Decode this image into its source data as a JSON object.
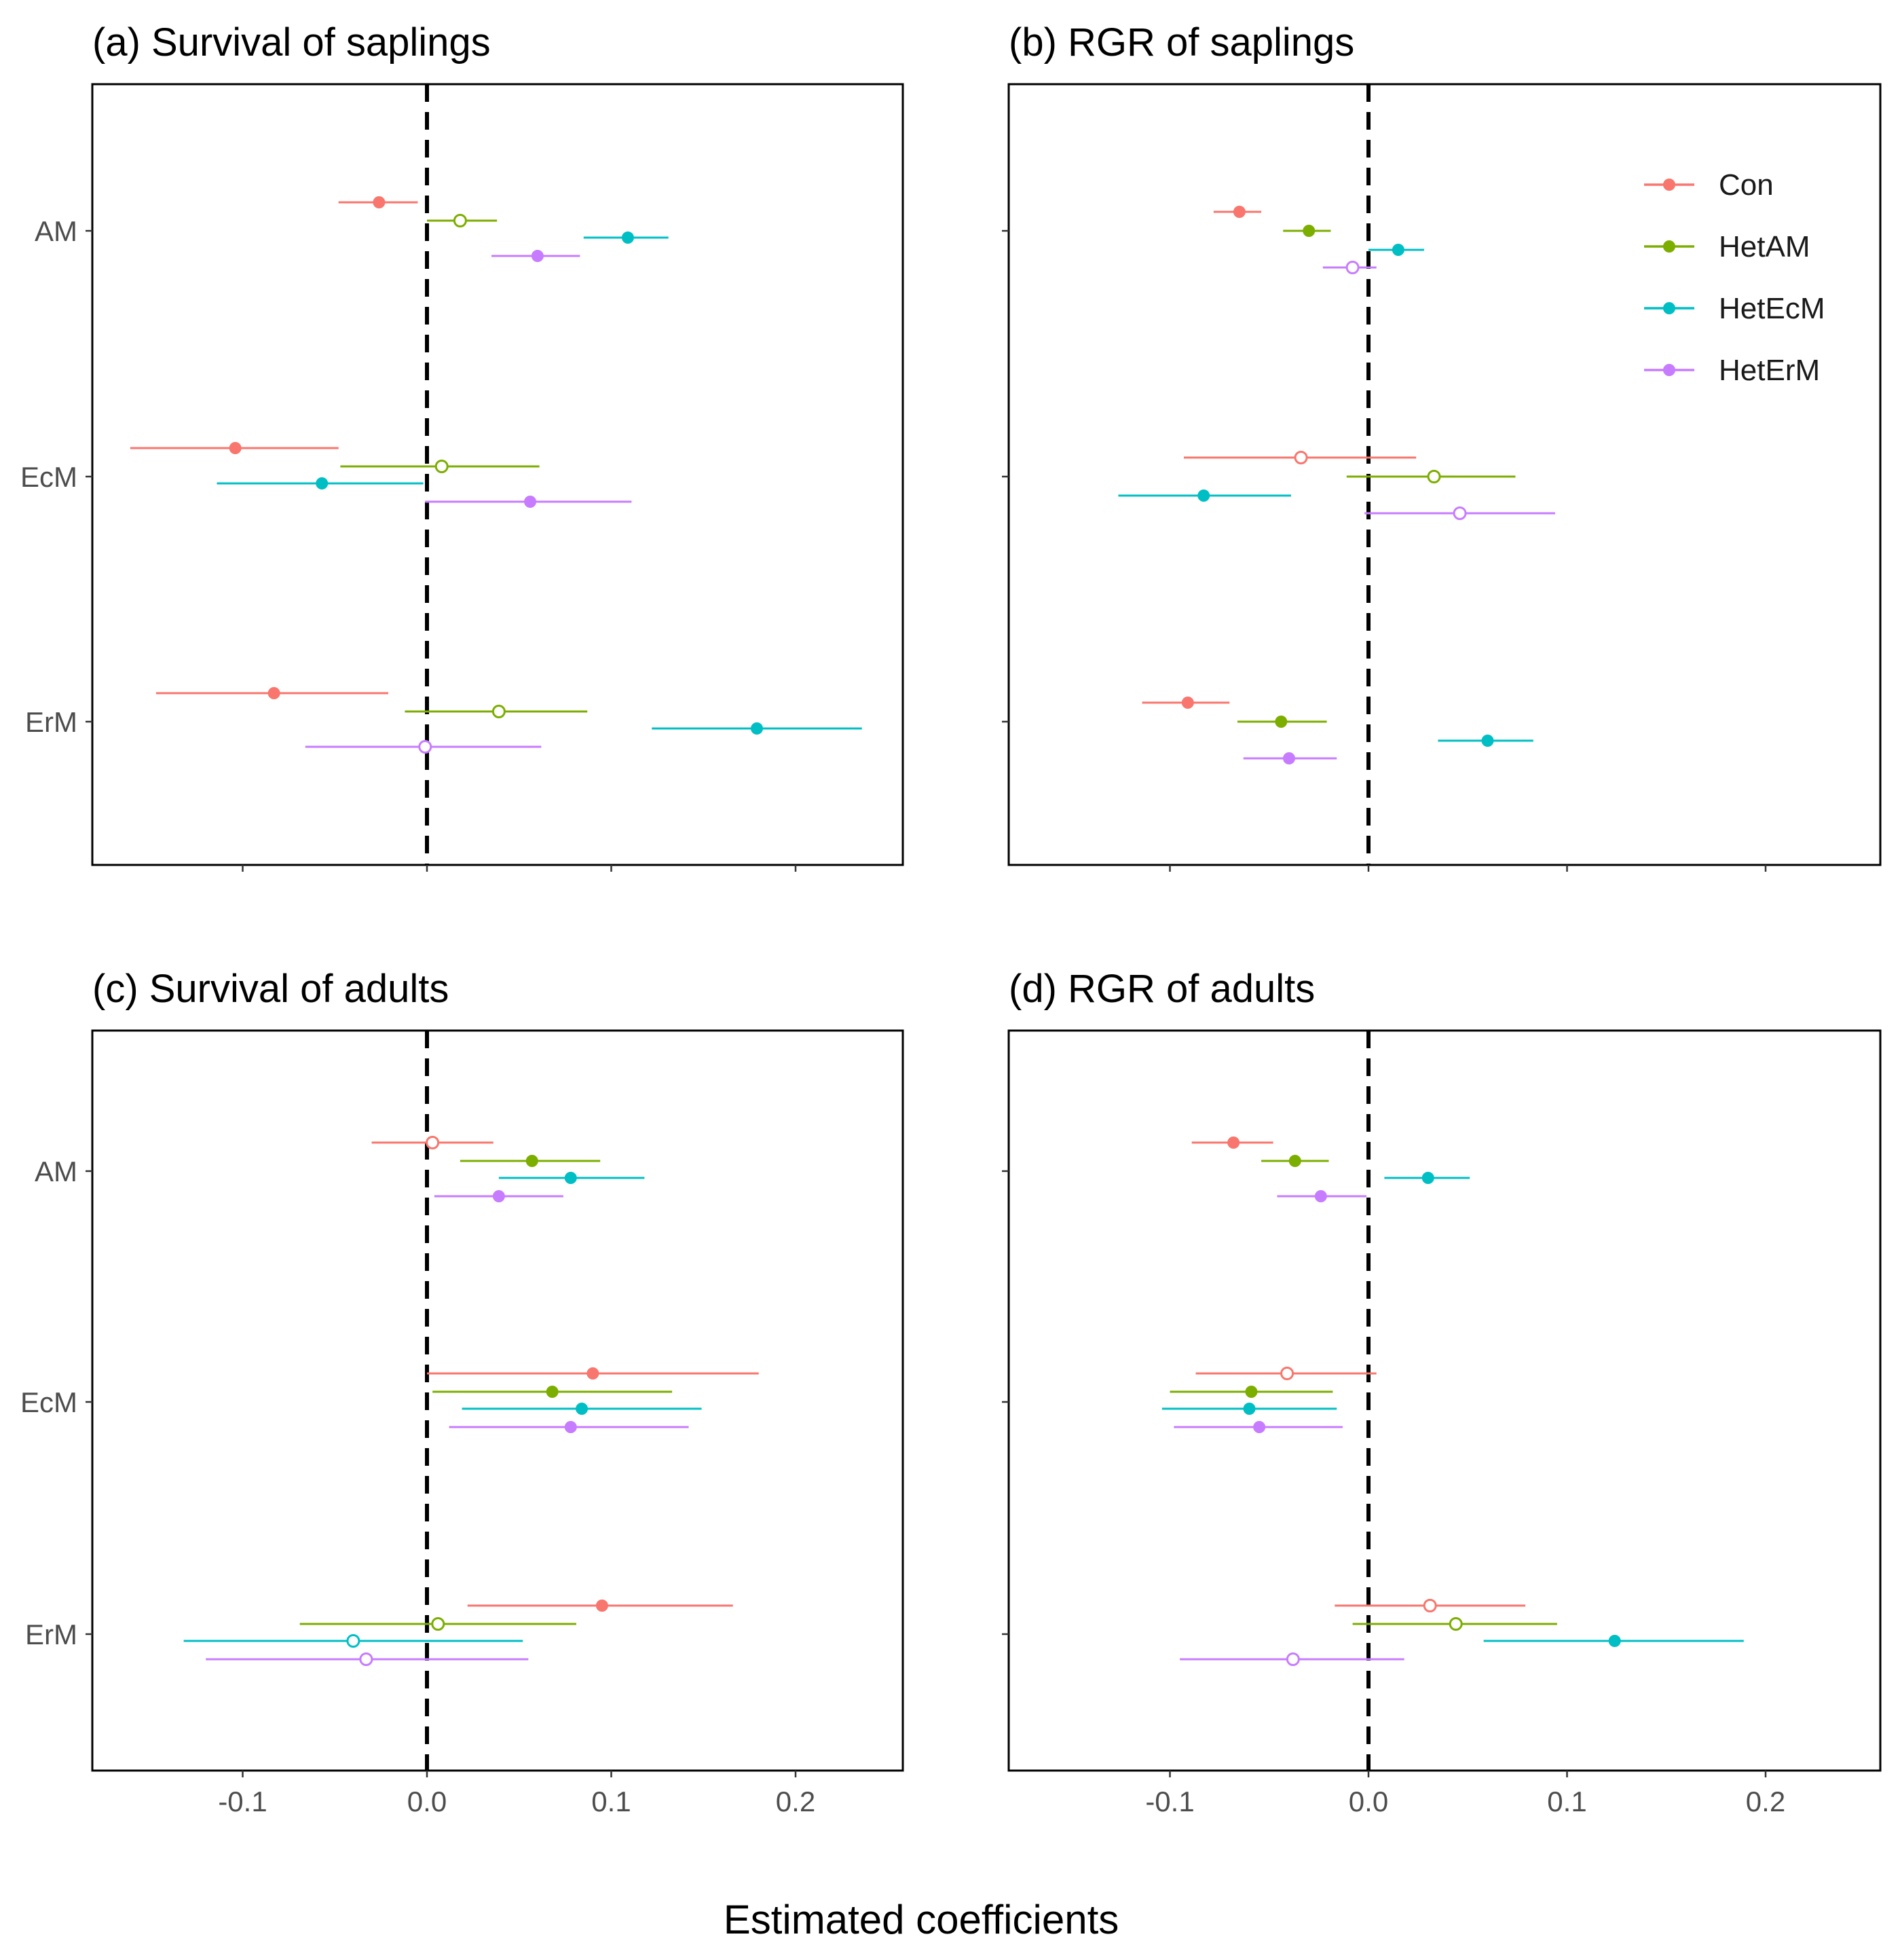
{
  "figure": {
    "x_axis_title": "Estimated coefficients",
    "group_categories": [
      "AM",
      "EcM",
      "ErM"
    ],
    "legend": {
      "placement": "top-right of panel (b)",
      "entries": [
        {
          "name": "Con",
          "color": "#F8766D"
        },
        {
          "name": "HetAM",
          "color": "#7CAE00"
        },
        {
          "name": "HetEcM",
          "color": "#00BFC4"
        },
        {
          "name": "HetErM",
          "color": "#C77CFF"
        }
      ]
    },
    "x_ticks": [
      -0.1,
      0.0,
      0.1,
      0.2
    ],
    "x_tick_labels": [
      "-0.1",
      "0.0",
      "0.1",
      "0.2"
    ],
    "reference_line": {
      "x": 0,
      "style": "dashed",
      "color": "#000000"
    },
    "marker_note": "filled = significant, open = not significant"
  },
  "chart_data": [
    {
      "type": "forest",
      "title": "(a) Survival of saplings",
      "xlabel": "Estimated coefficients",
      "ylabel": "",
      "xlim": [
        -0.181,
        0.258
      ],
      "categories": [
        "AM",
        "EcM",
        "ErM"
      ],
      "series": [
        {
          "name": "Con",
          "color": "#F8766D",
          "points": [
            {
              "group": "AM",
              "est": -0.026,
              "lo": -0.048,
              "hi": -0.005,
              "filled": true
            },
            {
              "group": "EcM",
              "est": -0.104,
              "lo": -0.161,
              "hi": -0.048,
              "filled": true
            },
            {
              "group": "ErM",
              "est": -0.083,
              "lo": -0.147,
              "hi": -0.021,
              "filled": true
            }
          ]
        },
        {
          "name": "HetAM",
          "color": "#7CAE00",
          "points": [
            {
              "group": "AM",
              "est": 0.018,
              "lo": 0.0,
              "hi": 0.038,
              "filled": false
            },
            {
              "group": "EcM",
              "est": 0.008,
              "lo": -0.047,
              "hi": 0.061,
              "filled": false
            },
            {
              "group": "ErM",
              "est": 0.039,
              "lo": -0.012,
              "hi": 0.087,
              "filled": false
            }
          ]
        },
        {
          "name": "HetEcM",
          "color": "#00BFC4",
          "points": [
            {
              "group": "AM",
              "est": 0.109,
              "lo": 0.085,
              "hi": 0.131,
              "filled": true
            },
            {
              "group": "EcM",
              "est": -0.057,
              "lo": -0.114,
              "hi": -0.002,
              "filled": true
            },
            {
              "group": "ErM",
              "est": 0.179,
              "lo": 0.122,
              "hi": 0.236,
              "filled": true
            }
          ]
        },
        {
          "name": "HetErM",
          "color": "#C77CFF",
          "points": [
            {
              "group": "AM",
              "est": 0.06,
              "lo": 0.035,
              "hi": 0.083,
              "filled": true
            },
            {
              "group": "EcM",
              "est": 0.056,
              "lo": -0.001,
              "hi": 0.111,
              "filled": true
            },
            {
              "group": "ErM",
              "est": -0.001,
              "lo": -0.066,
              "hi": 0.062,
              "filled": false
            }
          ]
        }
      ]
    },
    {
      "type": "forest",
      "title": "(b) RGR of saplings",
      "xlabel": "Estimated coefficients",
      "ylabel": "",
      "xlim": [
        -0.181,
        0.258
      ],
      "categories": [
        "AM",
        "EcM",
        "ErM"
      ],
      "series": [
        {
          "name": "Con",
          "color": "#F8766D",
          "points": [
            {
              "group": "AM",
              "est": -0.065,
              "lo": -0.078,
              "hi": -0.054,
              "filled": true
            },
            {
              "group": "EcM",
              "est": -0.034,
              "lo": -0.093,
              "hi": 0.024,
              "filled": false
            },
            {
              "group": "ErM",
              "est": -0.091,
              "lo": -0.114,
              "hi": -0.07,
              "filled": true
            }
          ]
        },
        {
          "name": "HetAM",
          "color": "#7CAE00",
          "points": [
            {
              "group": "AM",
              "est": -0.03,
              "lo": -0.043,
              "hi": -0.019,
              "filled": true
            },
            {
              "group": "EcM",
              "est": 0.033,
              "lo": -0.011,
              "hi": 0.074,
              "filled": false
            },
            {
              "group": "ErM",
              "est": -0.044,
              "lo": -0.066,
              "hi": -0.021,
              "filled": true
            }
          ]
        },
        {
          "name": "HetEcM",
          "color": "#00BFC4",
          "points": [
            {
              "group": "AM",
              "est": 0.015,
              "lo": 0.0,
              "hi": 0.028,
              "filled": true
            },
            {
              "group": "EcM",
              "est": -0.083,
              "lo": -0.126,
              "hi": -0.039,
              "filled": true
            },
            {
              "group": "ErM",
              "est": 0.06,
              "lo": 0.035,
              "hi": 0.083,
              "filled": true
            }
          ]
        },
        {
          "name": "HetErM",
          "color": "#C77CFF",
          "points": [
            {
              "group": "AM",
              "est": -0.008,
              "lo": -0.023,
              "hi": 0.004,
              "filled": false
            },
            {
              "group": "EcM",
              "est": 0.046,
              "lo": -0.002,
              "hi": 0.094,
              "filled": false
            },
            {
              "group": "ErM",
              "est": -0.04,
              "lo": -0.063,
              "hi": -0.016,
              "filled": true
            }
          ]
        }
      ]
    },
    {
      "type": "forest",
      "title": "(c) Survival of adults",
      "xlabel": "Estimated coefficients",
      "ylabel": "",
      "xlim": [
        -0.181,
        0.258
      ],
      "categories": [
        "AM",
        "EcM",
        "ErM"
      ],
      "series": [
        {
          "name": "Con",
          "color": "#F8766D",
          "points": [
            {
              "group": "AM",
              "est": 0.003,
              "lo": -0.03,
              "hi": 0.036,
              "filled": false
            },
            {
              "group": "EcM",
              "est": 0.09,
              "lo": 0.0,
              "hi": 0.18,
              "filled": true
            },
            {
              "group": "ErM",
              "est": 0.095,
              "lo": 0.022,
              "hi": 0.166,
              "filled": true
            }
          ]
        },
        {
          "name": "HetAM",
          "color": "#7CAE00",
          "points": [
            {
              "group": "AM",
              "est": 0.057,
              "lo": 0.018,
              "hi": 0.094,
              "filled": true
            },
            {
              "group": "EcM",
              "est": 0.068,
              "lo": 0.003,
              "hi": 0.133,
              "filled": true
            },
            {
              "group": "ErM",
              "est": 0.006,
              "lo": -0.069,
              "hi": 0.081,
              "filled": false
            }
          ]
        },
        {
          "name": "HetEcM",
          "color": "#00BFC4",
          "points": [
            {
              "group": "AM",
              "est": 0.078,
              "lo": 0.039,
              "hi": 0.118,
              "filled": true
            },
            {
              "group": "EcM",
              "est": 0.084,
              "lo": 0.019,
              "hi": 0.149,
              "filled": true
            },
            {
              "group": "ErM",
              "est": -0.04,
              "lo": -0.132,
              "hi": 0.052,
              "filled": false
            }
          ]
        },
        {
          "name": "HetErM",
          "color": "#C77CFF",
          "points": [
            {
              "group": "AM",
              "est": 0.039,
              "lo": 0.004,
              "hi": 0.074,
              "filled": true
            },
            {
              "group": "EcM",
              "est": 0.078,
              "lo": 0.012,
              "hi": 0.142,
              "filled": true
            },
            {
              "group": "ErM",
              "est": -0.033,
              "lo": -0.12,
              "hi": 0.055,
              "filled": false
            }
          ]
        }
      ]
    },
    {
      "type": "forest",
      "title": "(d) RGR of adults",
      "xlabel": "Estimated coefficients",
      "ylabel": "",
      "xlim": [
        -0.181,
        0.258
      ],
      "categories": [
        "AM",
        "EcM",
        "ErM"
      ],
      "series": [
        {
          "name": "Con",
          "color": "#F8766D",
          "points": [
            {
              "group": "AM",
              "est": -0.068,
              "lo": -0.089,
              "hi": -0.048,
              "filled": true
            },
            {
              "group": "EcM",
              "est": -0.041,
              "lo": -0.087,
              "hi": 0.004,
              "filled": false
            },
            {
              "group": "ErM",
              "est": 0.031,
              "lo": -0.017,
              "hi": 0.079,
              "filled": false
            }
          ]
        },
        {
          "name": "HetAM",
          "color": "#7CAE00",
          "points": [
            {
              "group": "AM",
              "est": -0.037,
              "lo": -0.054,
              "hi": -0.02,
              "filled": true
            },
            {
              "group": "EcM",
              "est": -0.059,
              "lo": -0.1,
              "hi": -0.018,
              "filled": true
            },
            {
              "group": "ErM",
              "est": 0.044,
              "lo": -0.008,
              "hi": 0.095,
              "filled": false
            }
          ]
        },
        {
          "name": "HetEcM",
          "color": "#00BFC4",
          "points": [
            {
              "group": "AM",
              "est": 0.03,
              "lo": 0.008,
              "hi": 0.051,
              "filled": true
            },
            {
              "group": "EcM",
              "est": -0.06,
              "lo": -0.104,
              "hi": -0.016,
              "filled": true
            },
            {
              "group": "ErM",
              "est": 0.124,
              "lo": 0.058,
              "hi": 0.189,
              "filled": true
            }
          ]
        },
        {
          "name": "HetErM",
          "color": "#C77CFF",
          "points": [
            {
              "group": "AM",
              "est": -0.024,
              "lo": -0.046,
              "hi": -0.001,
              "filled": true
            },
            {
              "group": "EcM",
              "est": -0.055,
              "lo": -0.098,
              "hi": -0.013,
              "filled": true
            },
            {
              "group": "ErM",
              "est": -0.038,
              "lo": -0.095,
              "hi": 0.018,
              "filled": false
            }
          ]
        }
      ]
    }
  ]
}
